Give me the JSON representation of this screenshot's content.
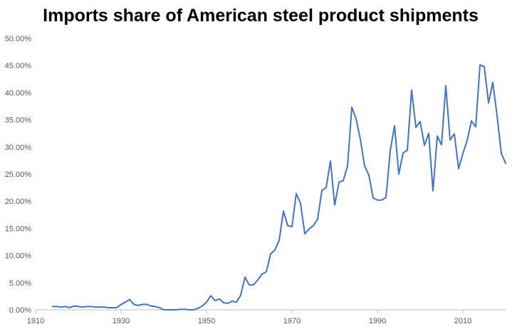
{
  "chart_data": {
    "type": "line",
    "title": "Imports share of American steel product shipments",
    "xlabel": "",
    "ylabel": "",
    "xlim": [
      1910,
      2020
    ],
    "ylim": [
      0,
      0.5
    ],
    "grid": false,
    "legend": "none",
    "x_ticks": [
      "1910",
      "1930",
      "1950",
      "1970",
      "1990",
      "2010"
    ],
    "y_ticks": [
      "0.00%",
      "5.00%",
      "10.00%",
      "15.00%",
      "20.00%",
      "25.00%",
      "30.00%",
      "35.00%",
      "40.00%",
      "45.00%",
      "50.00%"
    ],
    "colors": {
      "line": "#4472C4",
      "axis": "#BFBFBF"
    },
    "series": [
      {
        "x": [
          1914,
          1915,
          1916,
          1917,
          1918,
          1919,
          1920,
          1921,
          1922,
          1923,
          1924,
          1925,
          1926,
          1927,
          1928,
          1929,
          1930,
          1931,
          1932,
          1933,
          1934,
          1935,
          1936,
          1937,
          1938,
          1939,
          1940,
          1941,
          1942,
          1943,
          1944,
          1945,
          1946,
          1947,
          1948,
          1949,
          1950,
          1951,
          1952,
          1953,
          1954,
          1955,
          1956,
          1957,
          1958,
          1959,
          1960,
          1961,
          1962,
          1963,
          1964,
          1965,
          1966,
          1967,
          1968,
          1969,
          1970,
          1971,
          1972,
          1973,
          1974,
          1975,
          1976,
          1977,
          1978,
          1979,
          1980,
          1981,
          1982,
          1983,
          1984,
          1985,
          1986,
          1987,
          1988,
          1989,
          1990,
          1991,
          1992,
          1993,
          1994,
          1995,
          1996,
          1997,
          1998,
          1999,
          2000,
          2001,
          2002,
          2003,
          2004,
          2005,
          2006,
          2007,
          2008,
          2009,
          2010,
          2011,
          2012,
          2013,
          2014,
          2015,
          2016,
          2017,
          2018,
          2019,
          2020
        ],
        "values": [
          0.006,
          0.006,
          0.005,
          0.006,
          0.004,
          0.007,
          0.006,
          0.005,
          0.006,
          0.006,
          0.005,
          0.005,
          0.005,
          0.004,
          0.004,
          0.004,
          0.01,
          0.014,
          0.019,
          0.01,
          0.008,
          0.01,
          0.01,
          0.007,
          0.006,
          0.004,
          0.0,
          0.0,
          0.0,
          0.0,
          0.001,
          0.001,
          0.0,
          0.0,
          0.003,
          0.007,
          0.014,
          0.026,
          0.017,
          0.02,
          0.013,
          0.012,
          0.016,
          0.014,
          0.027,
          0.06,
          0.046,
          0.046,
          0.055,
          0.066,
          0.07,
          0.103,
          0.11,
          0.128,
          0.182,
          0.155,
          0.153,
          0.214,
          0.196,
          0.14,
          0.149,
          0.155,
          0.167,
          0.22,
          0.225,
          0.274,
          0.193,
          0.235,
          0.238,
          0.265,
          0.373,
          0.352,
          0.314,
          0.265,
          0.248,
          0.206,
          0.202,
          0.202,
          0.207,
          0.293,
          0.339,
          0.25,
          0.289,
          0.294,
          0.405,
          0.336,
          0.347,
          0.303,
          0.325,
          0.219,
          0.32,
          0.304,
          0.413,
          0.313,
          0.324,
          0.26,
          0.288,
          0.312,
          0.348,
          0.337,
          0.451,
          0.448,
          0.381,
          0.419,
          0.357,
          0.288,
          0.27
        ]
      }
    ]
  }
}
